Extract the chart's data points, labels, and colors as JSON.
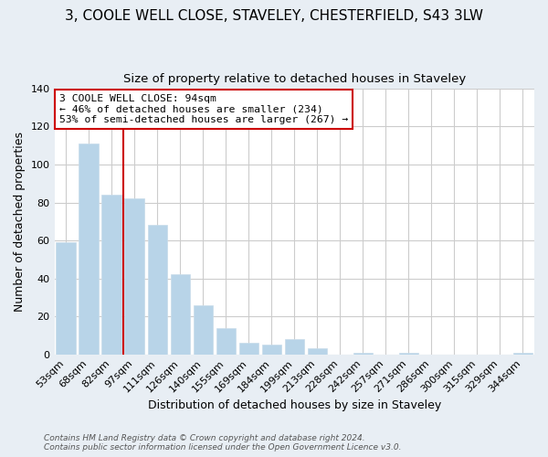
{
  "title": "3, COOLE WELL CLOSE, STAVELEY, CHESTERFIELD, S43 3LW",
  "subtitle": "Size of property relative to detached houses in Staveley",
  "xlabel": "Distribution of detached houses by size in Staveley",
  "ylabel": "Number of detached properties",
  "footnote1": "Contains HM Land Registry data © Crown copyright and database right 2024.",
  "footnote2": "Contains public sector information licensed under the Open Government Licence v3.0.",
  "bar_labels": [
    "53sqm",
    "68sqm",
    "82sqm",
    "97sqm",
    "111sqm",
    "126sqm",
    "140sqm",
    "155sqm",
    "169sqm",
    "184sqm",
    "199sqm",
    "213sqm",
    "228sqm",
    "242sqm",
    "257sqm",
    "271sqm",
    "286sqm",
    "300sqm",
    "315sqm",
    "329sqm",
    "344sqm"
  ],
  "bar_values": [
    59,
    111,
    84,
    82,
    68,
    42,
    26,
    14,
    6,
    5,
    8,
    3,
    0,
    1,
    0,
    1,
    0,
    0,
    0,
    0,
    1
  ],
  "bar_color": "#b8d4e8",
  "bar_edge_color": "#c8dcea",
  "highlight_color": "#cc0000",
  "annotation_title": "3 COOLE WELL CLOSE: 94sqm",
  "annotation_line1": "← 46% of detached houses are smaller (234)",
  "annotation_line2": "53% of semi-detached houses are larger (267) →",
  "annotation_box_color": "#ffffff",
  "annotation_box_edge": "#cc0000",
  "ylim": [
    0,
    140
  ],
  "yticks": [
    0,
    20,
    40,
    60,
    80,
    100,
    120,
    140
  ],
  "background_color": "#e8eef4",
  "plot_background": "#ffffff",
  "grid_color": "#cccccc",
  "title_fontsize": 11,
  "subtitle_fontsize": 9.5
}
